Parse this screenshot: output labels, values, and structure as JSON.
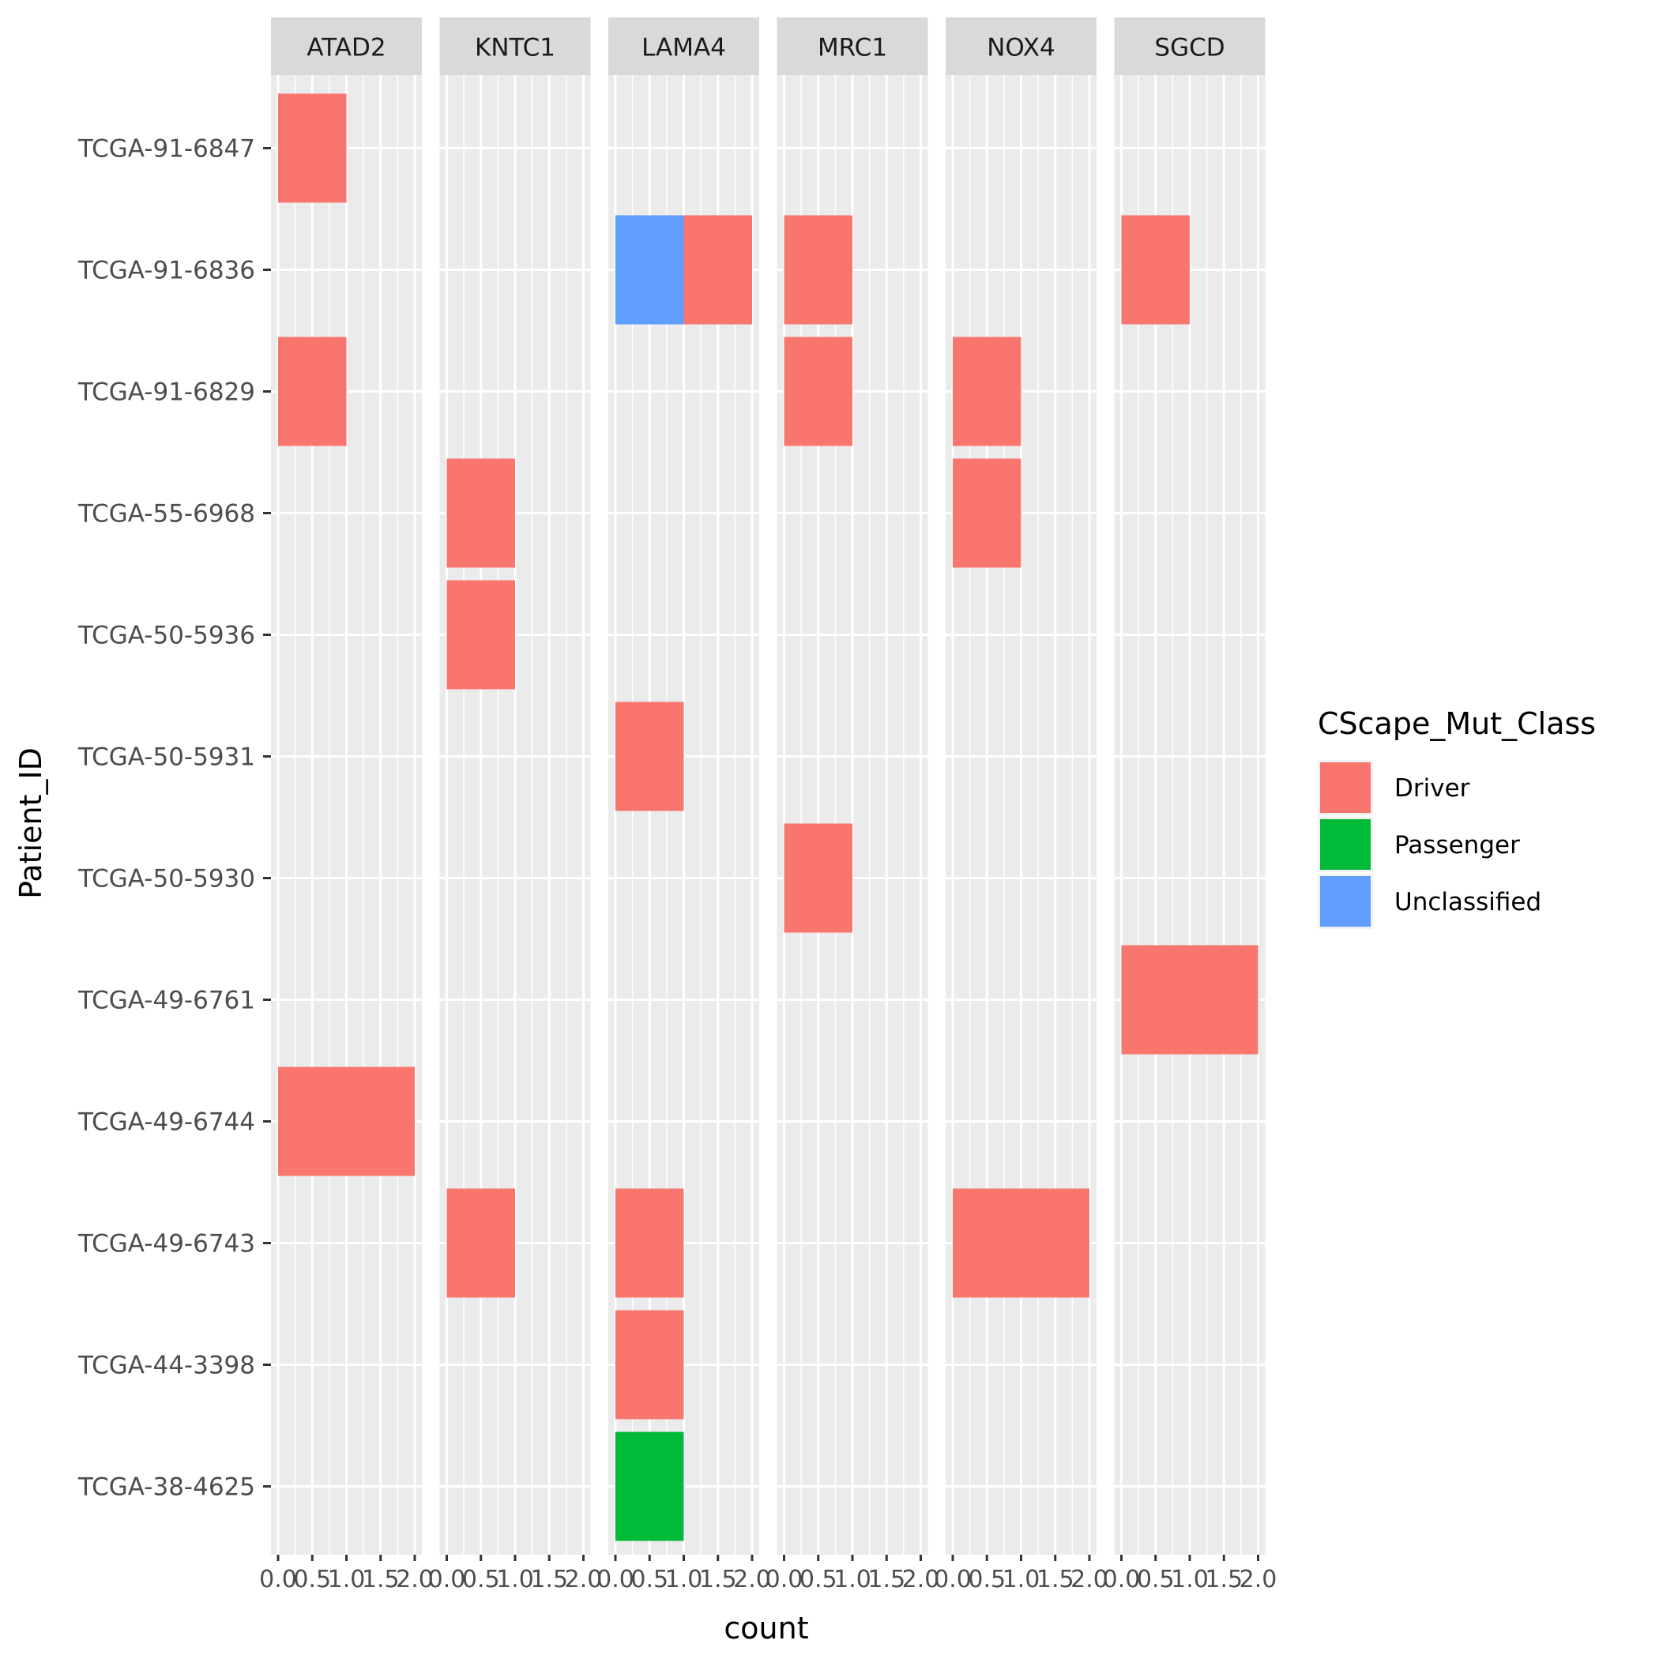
{
  "chart_data": {
    "type": "bar",
    "orientation": "horizontal",
    "stacked": true,
    "faceted": true,
    "xlabel": "count",
    "ylabel": "Patient_ID",
    "xlim": [
      0,
      2
    ],
    "x_ticks": [
      "0.0",
      "0.5",
      "1.0",
      "1.5",
      "2.0"
    ],
    "grid": true,
    "facets": [
      "ATAD2",
      "KNTC1",
      "LAMA4",
      "MRC1",
      "NOX4",
      "SGCD"
    ],
    "categories": [
      "TCGA-91-6847",
      "TCGA-91-6836",
      "TCGA-91-6829",
      "TCGA-55-6968",
      "TCGA-50-5936",
      "TCGA-50-5931",
      "TCGA-50-5930",
      "TCGA-49-6761",
      "TCGA-49-6744",
      "TCGA-49-6743",
      "TCGA-44-3398",
      "TCGA-38-4625"
    ],
    "legend": {
      "title": "CScape_Mut_Class",
      "position": "right",
      "entries": [
        {
          "label": "Driver",
          "color": "#F8766D"
        },
        {
          "label": "Passenger",
          "color": "#00BA38"
        },
        {
          "label": "Unclassified",
          "color": "#619CFF"
        }
      ]
    },
    "bars": [
      {
        "facet": "ATAD2",
        "patient": "TCGA-91-6847",
        "segments": [
          {
            "class": "Driver",
            "count": 1
          }
        ]
      },
      {
        "facet": "ATAD2",
        "patient": "TCGA-91-6829",
        "segments": [
          {
            "class": "Driver",
            "count": 1
          }
        ]
      },
      {
        "facet": "ATAD2",
        "patient": "TCGA-49-6744",
        "segments": [
          {
            "class": "Driver",
            "count": 2
          }
        ]
      },
      {
        "facet": "KNTC1",
        "patient": "TCGA-55-6968",
        "segments": [
          {
            "class": "Driver",
            "count": 1
          }
        ]
      },
      {
        "facet": "KNTC1",
        "patient": "TCGA-50-5936",
        "segments": [
          {
            "class": "Driver",
            "count": 1
          }
        ]
      },
      {
        "facet": "KNTC1",
        "patient": "TCGA-49-6743",
        "segments": [
          {
            "class": "Driver",
            "count": 1
          }
        ]
      },
      {
        "facet": "LAMA4",
        "patient": "TCGA-91-6836",
        "segments": [
          {
            "class": "Unclassified",
            "count": 1
          },
          {
            "class": "Driver",
            "count": 1
          }
        ]
      },
      {
        "facet": "LAMA4",
        "patient": "TCGA-50-5931",
        "segments": [
          {
            "class": "Driver",
            "count": 1
          }
        ]
      },
      {
        "facet": "LAMA4",
        "patient": "TCGA-49-6743",
        "segments": [
          {
            "class": "Driver",
            "count": 1
          }
        ]
      },
      {
        "facet": "LAMA4",
        "patient": "TCGA-44-3398",
        "segments": [
          {
            "class": "Driver",
            "count": 1
          }
        ]
      },
      {
        "facet": "LAMA4",
        "patient": "TCGA-38-4625",
        "segments": [
          {
            "class": "Passenger",
            "count": 1
          }
        ]
      },
      {
        "facet": "MRC1",
        "patient": "TCGA-91-6836",
        "segments": [
          {
            "class": "Driver",
            "count": 1
          }
        ]
      },
      {
        "facet": "MRC1",
        "patient": "TCGA-91-6829",
        "segments": [
          {
            "class": "Driver",
            "count": 1
          }
        ]
      },
      {
        "facet": "MRC1",
        "patient": "TCGA-50-5930",
        "segments": [
          {
            "class": "Driver",
            "count": 1
          }
        ]
      },
      {
        "facet": "NOX4",
        "patient": "TCGA-91-6829",
        "segments": [
          {
            "class": "Driver",
            "count": 1
          }
        ]
      },
      {
        "facet": "NOX4",
        "patient": "TCGA-55-6968",
        "segments": [
          {
            "class": "Driver",
            "count": 1
          }
        ]
      },
      {
        "facet": "NOX4",
        "patient": "TCGA-49-6743",
        "segments": [
          {
            "class": "Driver",
            "count": 2
          }
        ]
      },
      {
        "facet": "SGCD",
        "patient": "TCGA-91-6836",
        "segments": [
          {
            "class": "Driver",
            "count": 1
          }
        ]
      },
      {
        "facet": "SGCD",
        "patient": "TCGA-49-6761",
        "segments": [
          {
            "class": "Driver",
            "count": 2
          }
        ]
      }
    ]
  }
}
